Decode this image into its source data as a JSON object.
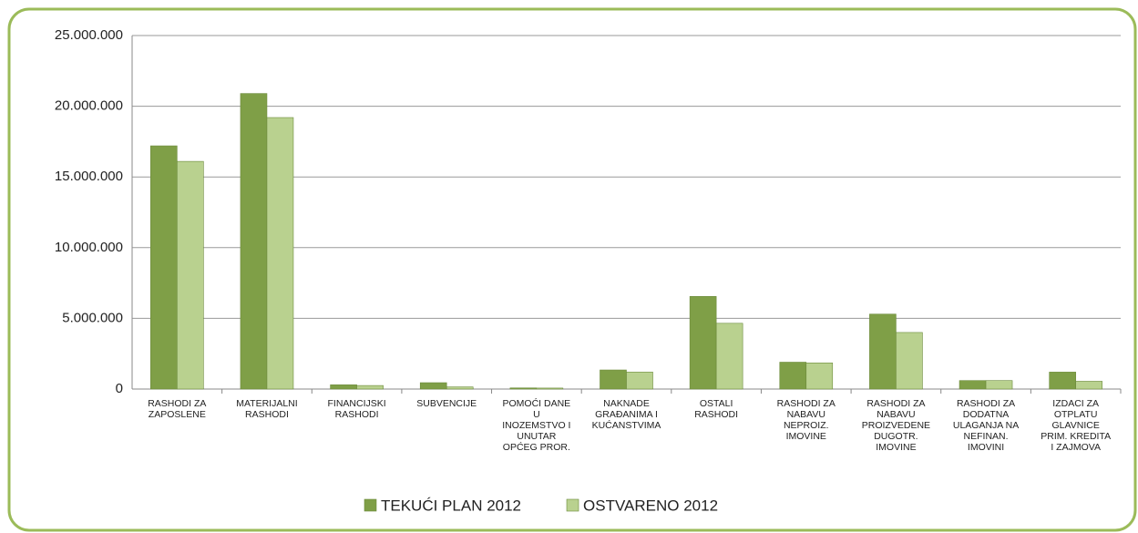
{
  "chart_data": {
    "type": "bar",
    "categories": [
      "RASHODI ZA\nZAPOSLENE",
      "MATERIJALNI\nRASHODI",
      "FINANCIJSKI\nRASHODI",
      "SUBVENCIJE",
      "POMOĆI DANE\nU\nINOZEMSTVO I\nUNUTAR\nOPĆEG PROR.",
      "NAKNADE\nGRAĐANIMA I\nKUĆANSTVIMA",
      "OSTALI\nRASHODI",
      "RASHODI ZA\nNABAVU\nNEPROIZ.\nIMOVINE",
      "RASHODI ZA\nNABAVU\nPROIZVEDENE\nDUGOTR.\nIMOVINE",
      "RASHODI ZA\nDODATNA\nULAGANJA NA\nNEFINAN.\nIMOVINI",
      "IZDACI ZA\nOTPLATU\nGLAVNICE\nPRIM. KREDITA\nI ZAJMOVA"
    ],
    "series": [
      {
        "name": "TEKUĆI PLAN 2012",
        "color": "#7f9f47",
        "values": [
          17200000,
          20900000,
          300000,
          450000,
          80000,
          1350000,
          6550000,
          1900000,
          5300000,
          600000,
          1200000
        ]
      },
      {
        "name": "OSTVARENO  2012",
        "color": "#b9d18f",
        "values": [
          16100000,
          19200000,
          250000,
          150000,
          70000,
          1200000,
          4650000,
          1850000,
          4000000,
          600000,
          550000
        ]
      }
    ],
    "ylim": [
      0,
      25000000
    ],
    "yticks": [
      0,
      {
        "value": 5000000,
        "label": "5.000.000"
      },
      {
        "value": 10000000,
        "label": "10.000.000"
      },
      {
        "value": 15000000,
        "label": "15.000.000"
      },
      {
        "value": 20000000,
        "label": "20.000.000"
      },
      {
        "value": 25000000,
        "label": "25.000.000"
      }
    ],
    "grid": true,
    "legend": "bottom"
  }
}
